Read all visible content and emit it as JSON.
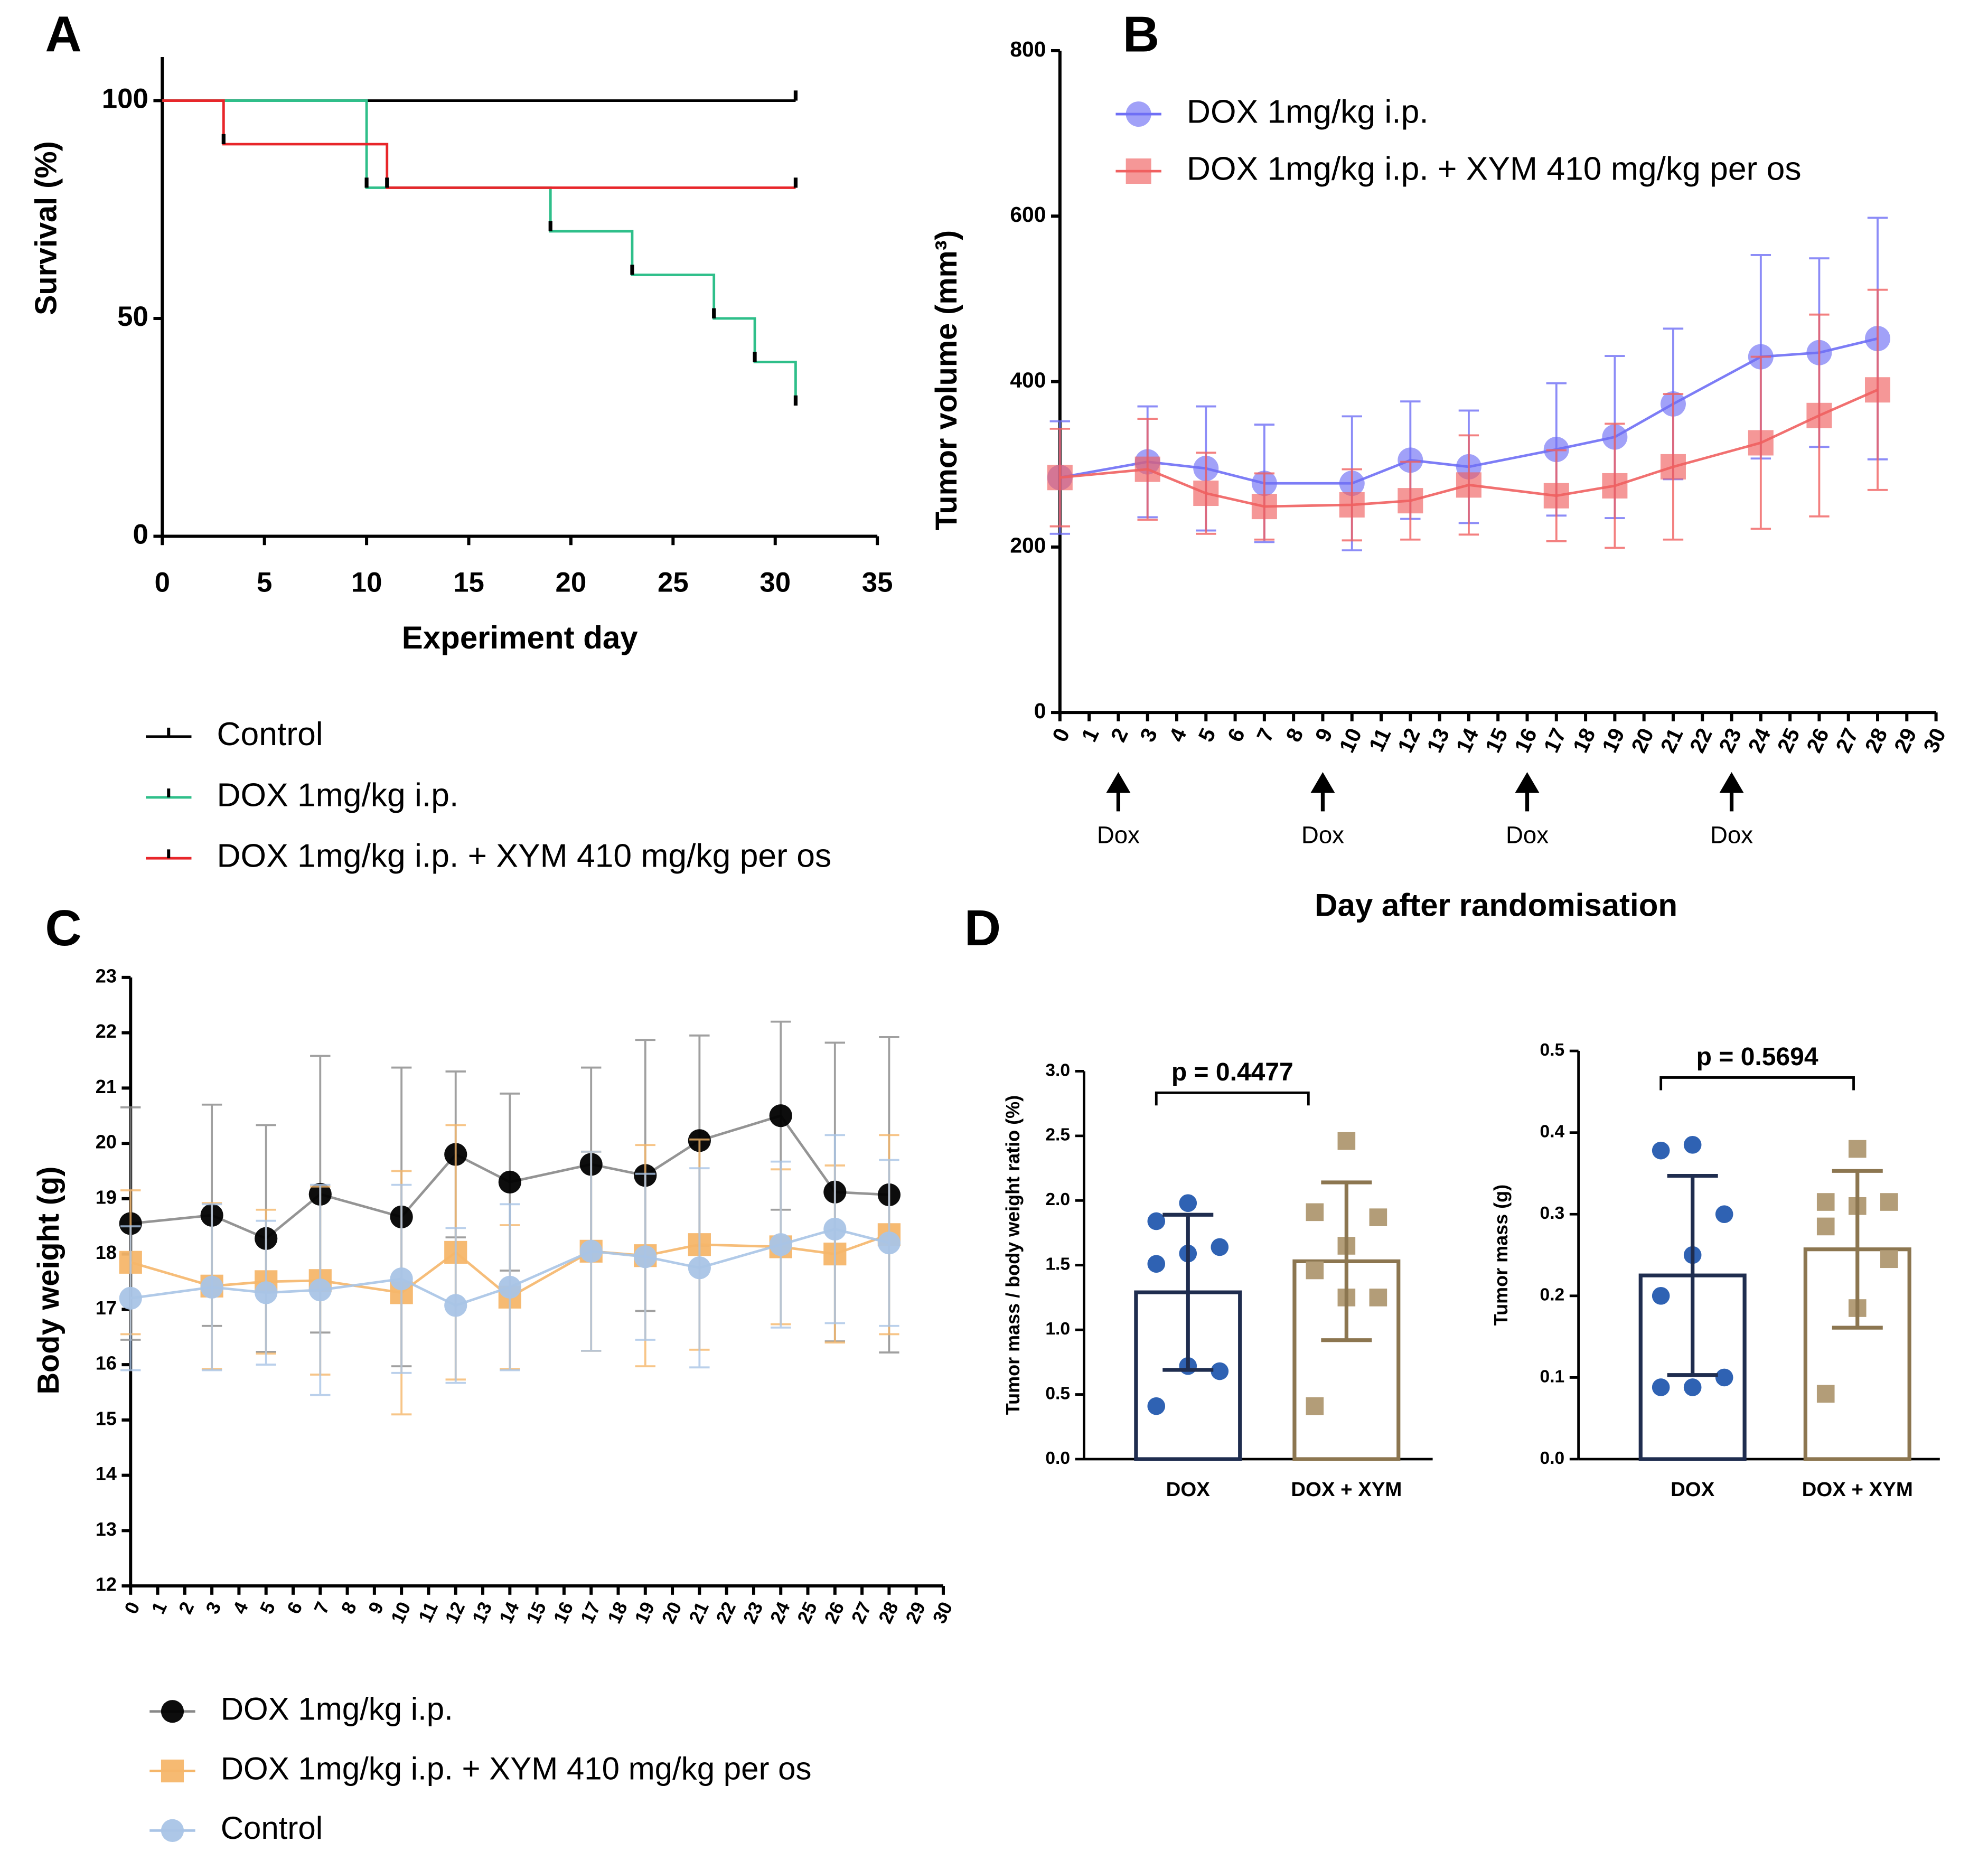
{
  "chart_data": [
    {
      "type": "step",
      "panel": "A",
      "xlabel": "Experiment day",
      "ylabel": "Survival (%)",
      "xlim": [
        0,
        35
      ],
      "xticks": [
        0,
        5,
        10,
        15,
        20,
        25,
        30,
        35
      ],
      "ylim": [
        0,
        110
      ],
      "yticks": [
        0,
        50,
        100
      ],
      "legend": "bottom",
      "series": [
        {
          "name": "Control",
          "color": "#000000",
          "x": [
            0,
            31
          ],
          "values": [
            100,
            100
          ]
        },
        {
          "name": "DOX 1mg/kg i.p.",
          "color": "#2fbf8a",
          "x": [
            0,
            10,
            19,
            23,
            27,
            29,
            31
          ],
          "values": [
            100,
            80,
            70,
            60,
            50,
            40,
            30
          ]
        },
        {
          "name": "DOX 1mg/kg i.p. + XYM 410 mg/kg per os",
          "color": "#e8262a",
          "x": [
            0,
            3,
            11,
            31
          ],
          "values": [
            100,
            90,
            80,
            80
          ]
        }
      ]
    },
    {
      "type": "line",
      "panel": "B",
      "xlabel": "Day after randomisation",
      "ylabel": "Tumor volume (mm³)",
      "x": [
        0,
        3,
        5,
        7,
        10,
        12,
        14,
        17,
        19,
        21,
        24,
        26,
        28
      ],
      "xlim": [
        0,
        30
      ],
      "xticks": [
        0,
        1,
        2,
        3,
        4,
        5,
        6,
        7,
        8,
        9,
        10,
        11,
        12,
        13,
        14,
        15,
        16,
        17,
        18,
        19,
        20,
        21,
        22,
        23,
        24,
        25,
        26,
        27,
        28,
        29,
        30
      ],
      "ylim": [
        0,
        800
      ],
      "yticks": [
        0,
        200,
        400,
        600,
        800
      ],
      "legend": "top-left",
      "series": [
        {
          "name": "DOX 1mg/kg i.p.",
          "color": "#6f6ff5",
          "marker": "circle",
          "values": [
            284,
            303,
            295,
            277,
            277,
            305,
            297,
            318,
            333,
            373,
            430,
            435,
            452
          ],
          "errors": [
            68,
            67,
            75,
            71,
            81,
            71,
            68,
            80,
            98,
            91,
            123,
            114,
            146
          ]
        },
        {
          "name": "DOX 1mg/kg i.p. + XYM 410 mg/kg per os",
          "color": "#f06060",
          "marker": "square",
          "values": [
            284,
            294,
            265,
            249,
            251,
            256,
            275,
            262,
            274,
            297,
            326,
            359,
            390
          ],
          "errors": [
            59,
            61,
            49,
            40,
            43,
            47,
            60,
            55,
            75,
            88,
            104,
            122,
            121
          ]
        }
      ],
      "annotations": [
        {
          "x": 2,
          "text": "Dox"
        },
        {
          "x": 9,
          "text": "Dox"
        },
        {
          "x": 16,
          "text": "Dox"
        },
        {
          "x": 23,
          "text": "Dox"
        }
      ]
    },
    {
      "type": "line",
      "panel": "C",
      "ylabel": "Body weight (g)",
      "x": [
        0,
        3,
        5,
        7,
        10,
        12,
        14,
        17,
        19,
        21,
        24,
        26,
        28
      ],
      "xlim": [
        0,
        30
      ],
      "xticks": [
        0,
        1,
        2,
        3,
        4,
        5,
        6,
        7,
        8,
        9,
        10,
        11,
        12,
        13,
        14,
        15,
        16,
        17,
        18,
        19,
        20,
        21,
        22,
        23,
        24,
        25,
        26,
        27,
        28,
        29,
        30
      ],
      "ylim": [
        12,
        23
      ],
      "yticks": [
        12,
        13,
        14,
        15,
        16,
        17,
        18,
        19,
        20,
        21,
        22,
        23
      ],
      "legend": "bottom",
      "series": [
        {
          "name": "DOX 1mg/kg i.p.",
          "color": "#000000",
          "line_color": "#888888",
          "marker": "circle",
          "values": [
            18.55,
            18.7,
            18.28,
            19.08,
            18.67,
            19.8,
            19.3,
            19.62,
            19.42,
            20.05,
            20.5,
            19.12,
            19.07
          ],
          "errors": [
            2.1,
            2.0,
            2.05,
            2.5,
            2.7,
            1.5,
            1.6,
            1.75,
            2.45,
            1.9,
            1.7,
            2.7,
            2.85
          ]
        },
        {
          "name": "DOX 1mg/kg i.p. + XYM 410 mg/kg per os",
          "color": "#f5b66a",
          "marker": "square",
          "values": [
            17.85,
            17.42,
            17.5,
            17.52,
            17.3,
            18.03,
            17.22,
            18.05,
            17.97,
            18.17,
            18.13,
            18.0,
            18.35
          ],
          "errors": [
            1.3,
            1.5,
            1.3,
            1.7,
            2.2,
            2.3,
            1.3,
            1.8,
            2.0,
            1.9,
            1.4,
            1.6,
            1.8
          ]
        },
        {
          "name": "Control",
          "color": "#a9c4e6",
          "marker": "circle",
          "values": [
            17.2,
            17.4,
            17.3,
            17.35,
            17.55,
            17.07,
            17.4,
            18.05,
            17.95,
            17.75,
            18.17,
            18.45,
            18.2
          ],
          "errors": [
            1.3,
            1.5,
            1.3,
            1.9,
            1.7,
            1.4,
            1.5,
            1.8,
            1.5,
            1.8,
            1.5,
            1.7,
            1.5
          ]
        }
      ]
    },
    {
      "type": "bar",
      "panel": "D",
      "ylabel": "Tumor mass / body weight ratio (%)",
      "categories": [
        "DOX",
        "DOX + XYM"
      ],
      "values": [
        1.29,
        1.53
      ],
      "errors": [
        0.6,
        0.61
      ],
      "colors": [
        "#1f2d4f",
        "#8c7650"
      ],
      "point_colors": [
        "#2f62b3",
        "#b39d78"
      ],
      "markers": [
        "circle",
        "square"
      ],
      "points": [
        [
          1.98,
          1.84,
          1.64,
          1.59,
          1.51,
          0.68,
          0.72,
          0.41
        ],
        [
          2.46,
          1.91,
          1.87,
          1.65,
          1.46,
          1.25,
          1.25,
          0.41
        ]
      ],
      "ylim": [
        0,
        3
      ],
      "yticks": [
        {
          "value": 0,
          "label": "0.0"
        },
        0.5,
        {
          "value": 1,
          "label": "1.0"
        },
        1.5,
        {
          "value": 2,
          "label": "2.0"
        },
        2.5,
        {
          "value": 3,
          "label": "3.0"
        }
      ],
      "annotation": "p = 0.4477"
    },
    {
      "type": "bar",
      "ylabel": "Tumor mass (g)",
      "categories": [
        "DOX",
        "DOX + XYM"
      ],
      "values": [
        0.225,
        0.257
      ],
      "errors": [
        0.122,
        0.096
      ],
      "colors": [
        "#1f2d4f",
        "#8c7650"
      ],
      "point_colors": [
        "#2f62b3",
        "#b39d78"
      ],
      "markers": [
        "circle",
        "square"
      ],
      "points": [
        [
          0.385,
          0.378,
          0.3,
          0.25,
          0.2,
          0.1,
          0.088,
          0.088
        ],
        [
          0.38,
          0.315,
          0.315,
          0.31,
          0.285,
          0.245,
          0.185,
          0.08
        ]
      ],
      "ylim": [
        0,
        0.5
      ],
      "yticks": [
        {
          "value": 0,
          "label": "0.0"
        },
        0.1,
        0.2,
        0.3,
        0.4,
        0.5
      ],
      "annotation": "p = 0.5694"
    }
  ]
}
